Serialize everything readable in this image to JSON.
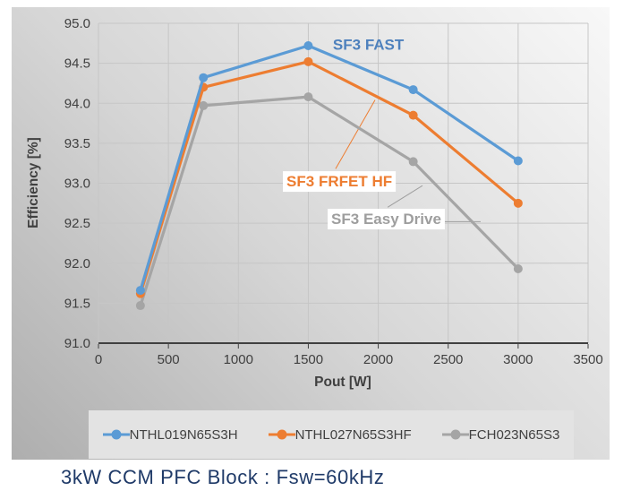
{
  "caption": {
    "text": "3kW CCM PFC Block : Fsw=60kHz",
    "color": "#1F3A68"
  },
  "legend": {
    "bg": "#E3E3E3",
    "text_color": "#404040"
  },
  "panel": {
    "gradient_dark": "#AEAEAE",
    "gradient_mid": "#D6D6D6",
    "gradient_light": "#F8F8F8"
  },
  "chart_data": {
    "type": "line",
    "xlabel": "Pout [W]",
    "ylabel": "Efficiency [%]",
    "x": [
      300,
      750,
      1500,
      2250,
      3000
    ],
    "series": [
      {
        "name": "NTHL019N65S3H",
        "annotation": "SF3 FAST",
        "color": "#5B9BD5",
        "values": [
          91.66,
          94.32,
          94.72,
          94.17,
          93.28
        ]
      },
      {
        "name": "NTHL027N65S3HF",
        "annotation": "SF3 FRFET HF",
        "color": "#ED7D31",
        "values": [
          91.62,
          94.2,
          94.52,
          93.85,
          92.75
        ]
      },
      {
        "name": "FCH023N65S3",
        "annotation": "SF3 Easy Drive",
        "color": "#A5A5A5",
        "values": [
          91.47,
          93.97,
          94.08,
          93.27,
          91.93
        ]
      }
    ],
    "xlim": [
      0,
      3500
    ],
    "xtick_step": 500,
    "ylim": [
      91.0,
      95.0
    ],
    "ytick_step": 0.5,
    "grid": true,
    "legend_position": "bottom",
    "gridline_color": "#C6C6C6",
    "axis_line_color": "#404040",
    "axis_text_color": "#404040",
    "annotations": [
      {
        "text": "SF3 FAST",
        "color": "#4E81BD",
        "x": 1676,
        "y": 94.67,
        "background": false,
        "leaders": []
      },
      {
        "text": "SF3 FRFET HF",
        "color": "#ED7D31",
        "x": 1344,
        "y": 92.96,
        "background": true,
        "leaders": [
          [
            [
              1695,
              93.18
            ],
            [
              1977,
              94.04
            ]
          ]
        ]
      },
      {
        "text": "SF3 Easy Drive",
        "color": "#9E9E9E",
        "x": 1664,
        "y": 92.49,
        "background": true,
        "leaders": [
          [
            [
              2067,
              92.7
            ],
            [
              2316,
              92.97
            ]
          ],
          [
            [
              2476,
              92.52
            ],
            [
              2732,
              92.52
            ]
          ]
        ]
      }
    ]
  }
}
